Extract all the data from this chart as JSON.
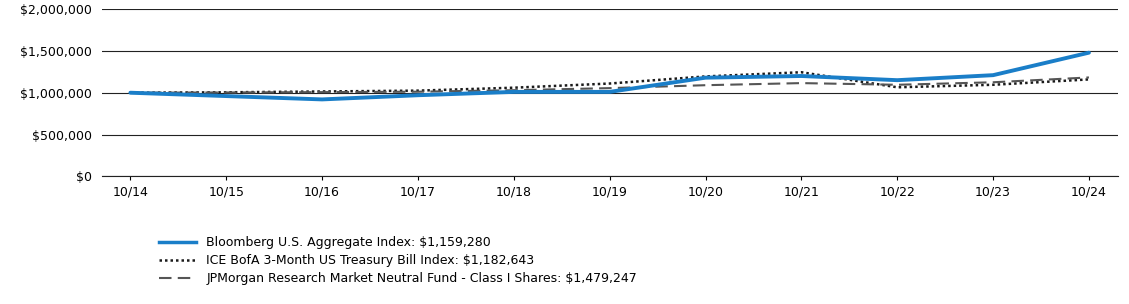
{
  "title": "",
  "x_labels": [
    "10/14",
    "10/15",
    "10/16",
    "10/17",
    "10/18",
    "10/19",
    "10/20",
    "10/21",
    "10/22",
    "10/23",
    "10/24"
  ],
  "x_values": [
    0,
    1,
    2,
    3,
    4,
    5,
    6,
    7,
    8,
    9,
    10
  ],
  "fund_values": [
    1000000,
    960000,
    920000,
    970000,
    1010000,
    1010000,
    1180000,
    1200000,
    1150000,
    1210000,
    1479247
  ],
  "bloomberg_values": [
    1000000,
    1005000,
    1015000,
    1025000,
    1060000,
    1110000,
    1195000,
    1245000,
    1065000,
    1095000,
    1159280
  ],
  "treasury_values": [
    1000000,
    1003000,
    1007000,
    1012000,
    1030000,
    1055000,
    1090000,
    1115000,
    1095000,
    1125000,
    1182643
  ],
  "fund_color": "#1a7ec8",
  "bloomberg_color": "#1a1a1a",
  "treasury_color": "#555555",
  "fund_label": "JPMorgan Research Market Neutral Fund - Class I Shares: $1,479,247",
  "bloomberg_label": "Bloomberg U.S. Aggregate Index: $1,159,280",
  "treasury_label": "ICE BofA 3-Month US Treasury Bill Index: $1,182,643",
  "ylim": [
    0,
    2000000
  ],
  "yticks": [
    0,
    500000,
    1000000,
    1500000,
    2000000
  ],
  "ytick_labels": [
    "$0",
    "$500,000",
    "$1,000,000",
    "$1,500,000",
    "$2,000,000"
  ],
  "background_color": "#ffffff",
  "grid_color": "#222222",
  "font_size": 9,
  "legend_font_size": 9
}
